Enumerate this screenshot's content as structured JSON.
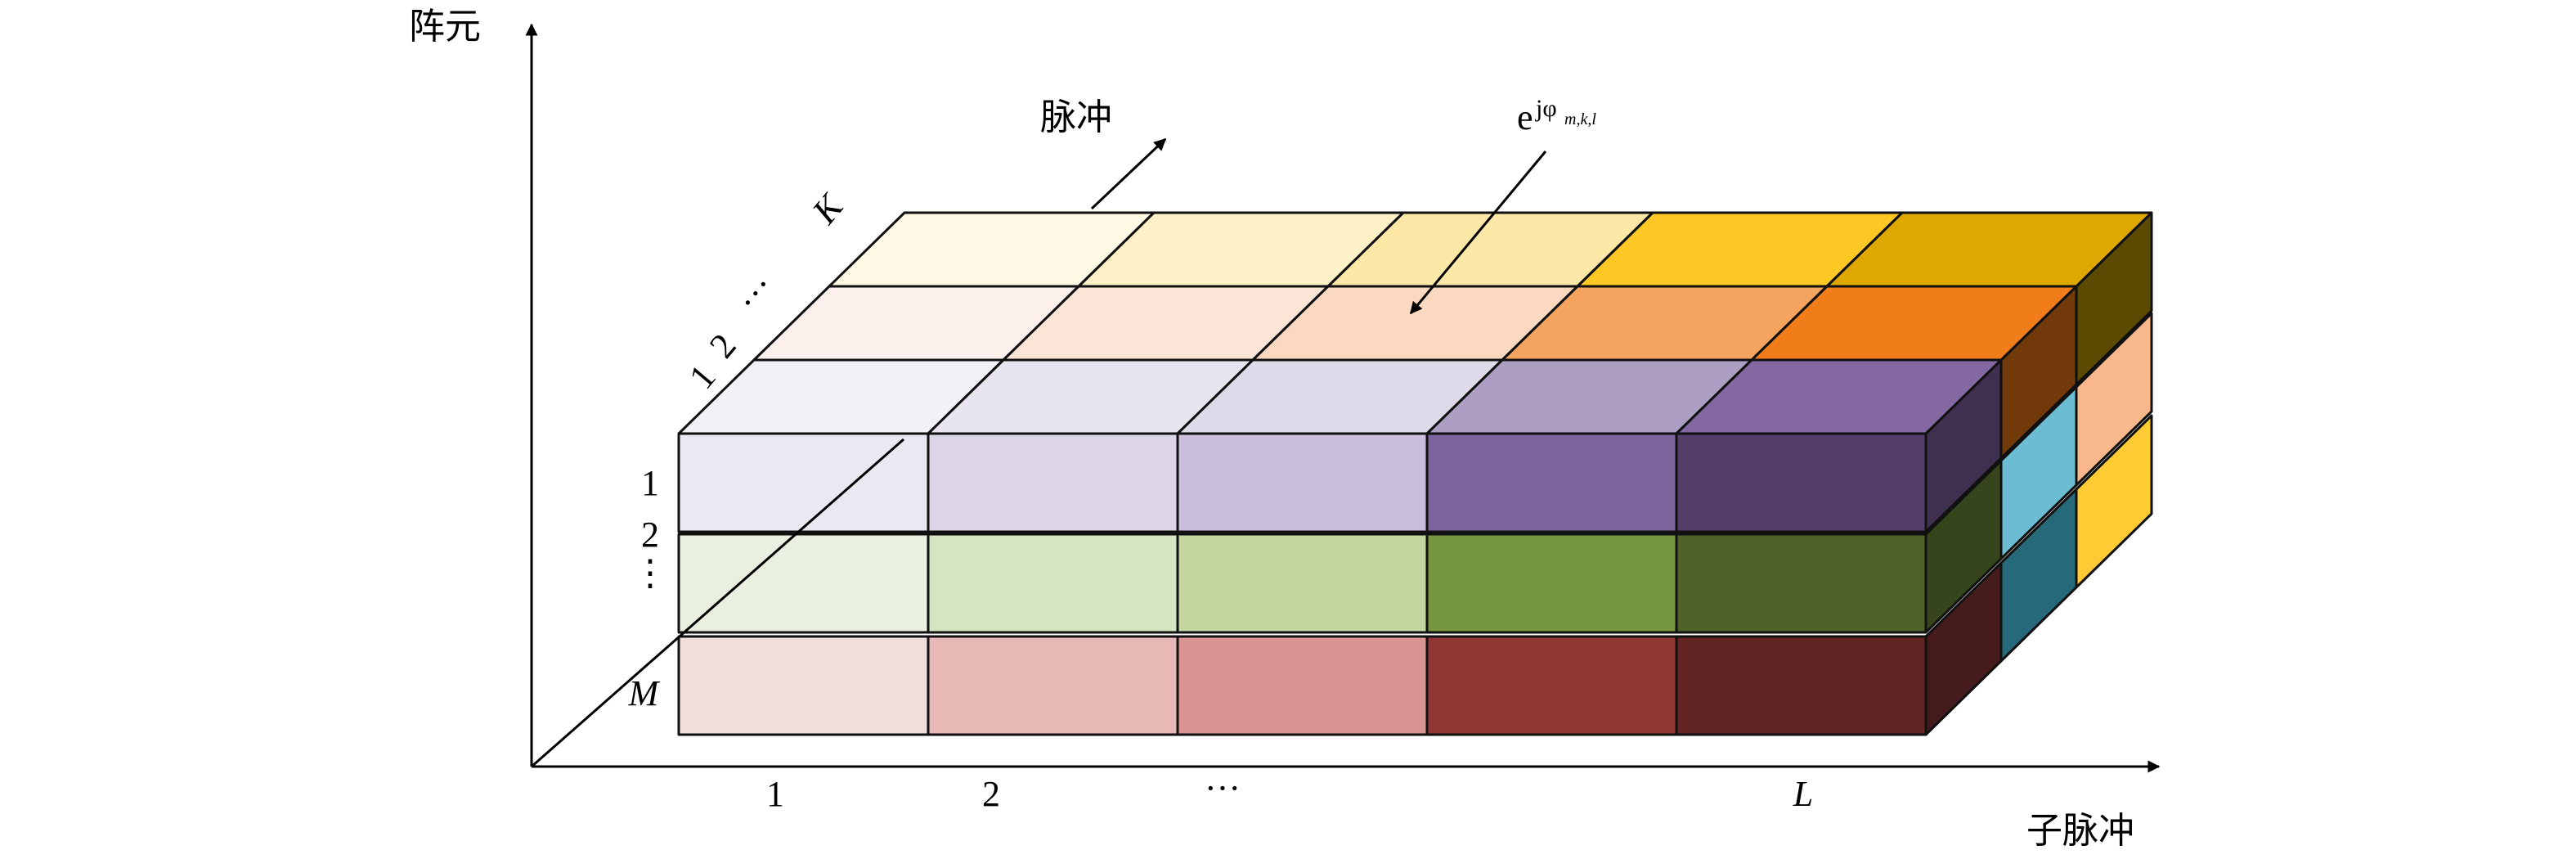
{
  "axes": {
    "vertical_label": "阵元",
    "horizontal_label": "子脉冲",
    "depth_label": "脉冲"
  },
  "subpulse_ticks": [
    "1",
    "2",
    "···",
    "L"
  ],
  "element_ticks": [
    "1",
    "2",
    "⋮",
    "M"
  ],
  "pulse_ticks": [
    "1",
    "2",
    "···",
    "K"
  ],
  "phase_annotation": {
    "base": "e",
    "superscript": "jφ",
    "subscript": "m,k,l"
  },
  "colors": {
    "rows": [
      {
        "front": [
          "#ece8f1",
          "#dcd5e6",
          "#c9bedb",
          "#7c649d",
          "#543f69"
        ],
        "side": "#3f3050",
        "tops": [
          [
            "#f3f1f8",
            "#e8e4f0",
            "#dedaea",
            "#ad9ec3",
            "#8368a2"
          ],
          [
            "#fcf0ec",
            "#fce4d6",
            "#fbd9c1",
            "#f5a45f",
            "#f17c1a"
          ],
          [
            "#fef8e4",
            "#fef1c7",
            "#fee8a8",
            "#fdc724",
            "#dfa800"
          ]
        ],
        "back_sides": [
          "#723a0b",
          "#5c4a02"
        ]
      },
      {
        "front": [
          "#e9f0e0",
          "#d7e4c1",
          "#c3d69f",
          "#779640",
          "#506229"
        ],
        "side": "#36451b",
        "back_sides": [
          "#6cbcd3",
          "#f8b88c"
        ]
      },
      {
        "front": [
          "#f1dddc",
          "#e6b9b7",
          "#d99591",
          "#903733",
          "#632524"
        ],
        "side": "#451b1b",
        "back_sides": [
          "#25697a",
          "#ffcb34"
        ]
      }
    ]
  }
}
